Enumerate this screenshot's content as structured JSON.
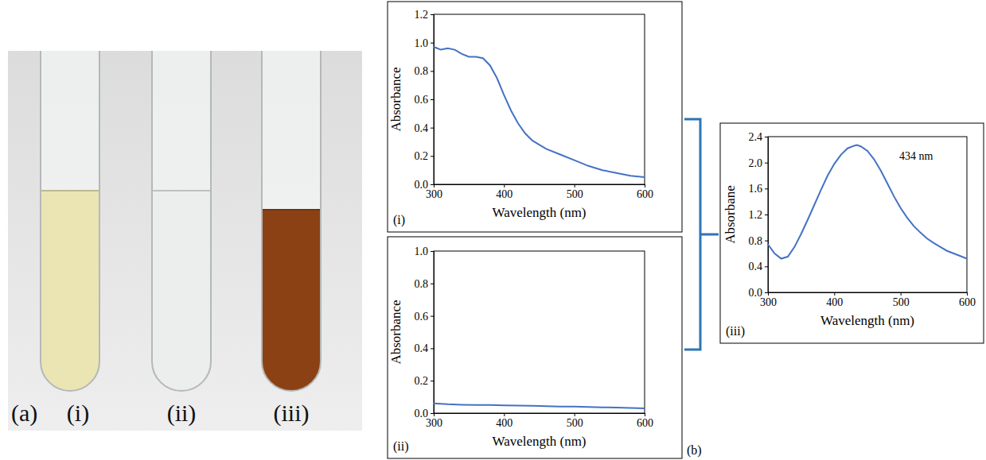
{
  "figure": {
    "photo_label": "(a)",
    "tube_labels": [
      "(i)",
      "(ii)",
      "(iii)"
    ],
    "tube_colors": [
      "#ebe5b4",
      "#eceeed",
      "#8c4114"
    ],
    "panel_label": "(b)"
  },
  "chart_data": [
    {
      "type": "line",
      "title": "(i)",
      "x_label": "Wavelength (nm)",
      "y_label": "Absorbance",
      "color": "#4472c4",
      "x": [
        300,
        305,
        310,
        320,
        330,
        340,
        350,
        360,
        370,
        380,
        390,
        400,
        410,
        420,
        430,
        440,
        450,
        460,
        480,
        500,
        520,
        540,
        560,
        580,
        600
      ],
      "values": [
        0.97,
        0.96,
        0.95,
        0.96,
        0.95,
        0.92,
        0.9,
        0.9,
        0.89,
        0.84,
        0.75,
        0.63,
        0.52,
        0.43,
        0.36,
        0.31,
        0.28,
        0.25,
        0.21,
        0.17,
        0.13,
        0.1,
        0.08,
        0.06,
        0.05
      ],
      "xlim": [
        300,
        600
      ],
      "xticks": [
        300,
        400,
        500,
        600
      ],
      "ylim": [
        0,
        1.2
      ],
      "yticks": [
        {
          "value": 0,
          "label": "0.0"
        },
        0.2,
        0.4,
        0.6,
        0.8,
        {
          "value": 1,
          "label": "1.0"
        },
        1.2
      ]
    },
    {
      "type": "line",
      "title": "(ii)",
      "x_label": "Wavelength (nm)",
      "y_label": "Absorbance",
      "color": "#4472c4",
      "x": [
        300,
        320,
        340,
        360,
        380,
        400,
        420,
        440,
        460,
        480,
        500,
        520,
        540,
        560,
        580,
        600
      ],
      "values": [
        0.06,
        0.055,
        0.052,
        0.05,
        0.05,
        0.048,
        0.046,
        0.045,
        0.043,
        0.041,
        0.04,
        0.038,
        0.036,
        0.034,
        0.032,
        0.03
      ],
      "xlim": [
        300,
        600
      ],
      "xticks": [
        300,
        400,
        500,
        600
      ],
      "ylim": [
        0,
        1.0
      ],
      "yticks": [
        {
          "value": 0,
          "label": "0.0"
        },
        0.2,
        0.4,
        0.6,
        0.8,
        {
          "value": 1,
          "label": "1.0"
        }
      ]
    },
    {
      "type": "line",
      "title": "(iii)",
      "x_label": "Wavelength (nm)",
      "y_label": "Absorbane",
      "color": "#4472c4",
      "annotations": [
        "434 nm"
      ],
      "x": [
        300,
        310,
        320,
        330,
        340,
        350,
        360,
        370,
        380,
        390,
        400,
        410,
        420,
        430,
        434,
        440,
        450,
        460,
        470,
        480,
        490,
        500,
        510,
        520,
        530,
        540,
        550,
        560,
        570,
        580,
        590,
        600
      ],
      "values": [
        0.74,
        0.6,
        0.52,
        0.55,
        0.7,
        0.9,
        1.12,
        1.35,
        1.58,
        1.8,
        1.98,
        2.12,
        2.22,
        2.26,
        2.27,
        2.25,
        2.18,
        2.05,
        1.88,
        1.68,
        1.48,
        1.3,
        1.15,
        1.02,
        0.92,
        0.83,
        0.76,
        0.7,
        0.64,
        0.6,
        0.56,
        0.52
      ],
      "xlim": [
        300,
        600
      ],
      "xticks": [
        300,
        400,
        500,
        600
      ],
      "ylim": [
        0,
        2.4
      ],
      "yticks": [
        {
          "value": 0,
          "label": "0.0"
        },
        0.4,
        0.8,
        1.2,
        1.6,
        {
          "value": 2,
          "label": "2.0"
        },
        2.4
      ]
    }
  ]
}
